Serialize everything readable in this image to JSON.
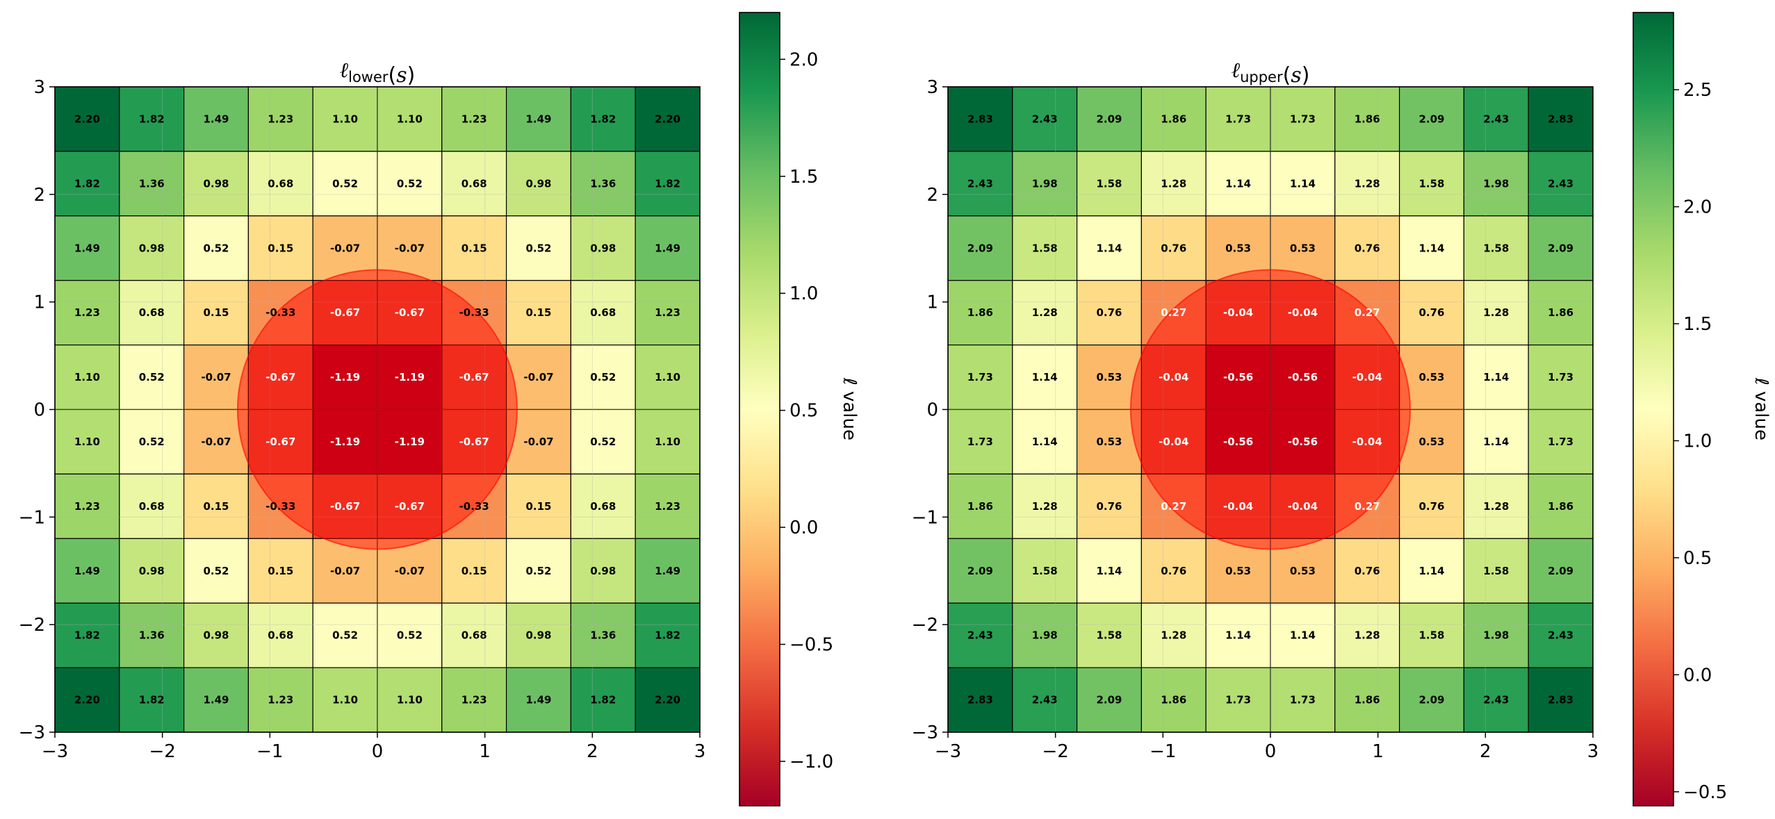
{
  "chart_data": [
    {
      "type": "heatmap",
      "title_symbol": "ℓ",
      "title_sub": "lower",
      "title_arg": "(s)",
      "x": [
        -2.7,
        -2.1,
        -1.5,
        -0.9,
        -0.3,
        0.3,
        0.9,
        1.5,
        2.1,
        2.7
      ],
      "y": [
        2.7,
        2.1,
        1.5,
        0.9,
        0.3,
        -0.3,
        -0.9,
        -1.5,
        -2.1,
        -2.7
      ],
      "xlim": [
        -3,
        3
      ],
      "ylim": [
        -3,
        3
      ],
      "xticks": [
        "−3",
        "−2",
        "−1",
        "0",
        "1",
        "2",
        "3"
      ],
      "yticks": [
        "3",
        "2",
        "1",
        "0",
        "−1",
        "−2",
        "−3"
      ],
      "grid": true,
      "colormap": "RdYlGn",
      "vmin": -1.19,
      "vmax": 2.2,
      "values": [
        [
          "2.20",
          "1.82",
          "1.49",
          "1.23",
          "1.10",
          "1.10",
          "1.23",
          "1.49",
          "1.82",
          "2.20"
        ],
        [
          "1.82",
          "1.36",
          "0.98",
          "0.68",
          "0.52",
          "0.52",
          "0.68",
          "0.98",
          "1.36",
          "1.82"
        ],
        [
          "1.49",
          "0.98",
          "0.52",
          "0.15",
          "-0.07",
          "-0.07",
          "0.15",
          "0.52",
          "0.98",
          "1.49"
        ],
        [
          "1.23",
          "0.68",
          "0.15",
          "-0.33",
          "-0.67",
          "-0.67",
          "-0.33",
          "0.15",
          "0.68",
          "1.23"
        ],
        [
          "1.10",
          "0.52",
          "-0.07",
          "-0.67",
          "-1.19",
          "-1.19",
          "-0.67",
          "-0.07",
          "0.52",
          "1.10"
        ],
        [
          "1.10",
          "0.52",
          "-0.07",
          "-0.67",
          "-1.19",
          "-1.19",
          "-0.67",
          "-0.07",
          "0.52",
          "1.10"
        ],
        [
          "1.23",
          "0.68",
          "0.15",
          "-0.33",
          "-0.67",
          "-0.67",
          "-0.33",
          "0.15",
          "0.68",
          "1.23"
        ],
        [
          "1.49",
          "0.98",
          "0.52",
          "0.15",
          "-0.07",
          "-0.07",
          "0.15",
          "0.52",
          "0.98",
          "1.49"
        ],
        [
          "1.82",
          "1.36",
          "0.98",
          "0.68",
          "0.52",
          "0.52",
          "0.68",
          "0.98",
          "1.36",
          "1.82"
        ],
        [
          "2.20",
          "1.82",
          "1.49",
          "1.23",
          "1.10",
          "1.10",
          "1.23",
          "1.49",
          "1.82",
          "2.20"
        ]
      ],
      "obstacle": {
        "center": [
          0,
          0
        ],
        "radius": 1.3,
        "color": "#ff0000",
        "alpha": 0.45
      },
      "colorbar": {
        "label": "ℓ value",
        "ticks": [
          -1.0,
          -0.5,
          0.0,
          0.5,
          1.0,
          1.5,
          2.0
        ],
        "tick_labels": [
          "−1.0",
          "−0.5",
          "0.0",
          "0.5",
          "1.0",
          "1.5",
          "2.0"
        ]
      }
    },
    {
      "type": "heatmap",
      "title_symbol": "ℓ",
      "title_sub": "upper",
      "title_arg": "(s)",
      "x": [
        -2.7,
        -2.1,
        -1.5,
        -0.9,
        -0.3,
        0.3,
        0.9,
        1.5,
        2.1,
        2.7
      ],
      "y": [
        2.7,
        2.1,
        1.5,
        0.9,
        0.3,
        -0.3,
        -0.9,
        -1.5,
        -2.1,
        -2.7
      ],
      "xlim": [
        -3,
        3
      ],
      "ylim": [
        -3,
        3
      ],
      "xticks": [
        "−3",
        "−2",
        "−1",
        "0",
        "1",
        "2",
        "3"
      ],
      "yticks": [
        "3",
        "2",
        "1",
        "0",
        "−1",
        "−2",
        "−3"
      ],
      "grid": true,
      "colormap": "RdYlGn",
      "vmin": -0.56,
      "vmax": 2.83,
      "values": [
        [
          "2.83",
          "2.43",
          "2.09",
          "1.86",
          "1.73",
          "1.73",
          "1.86",
          "2.09",
          "2.43",
          "2.83"
        ],
        [
          "2.43",
          "1.98",
          "1.58",
          "1.28",
          "1.14",
          "1.14",
          "1.28",
          "1.58",
          "1.98",
          "2.43"
        ],
        [
          "2.09",
          "1.58",
          "1.14",
          "0.76",
          "0.53",
          "0.53",
          "0.76",
          "1.14",
          "1.58",
          "2.09"
        ],
        [
          "1.86",
          "1.28",
          "0.76",
          "0.27",
          "-0.04",
          "-0.04",
          "0.27",
          "0.76",
          "1.28",
          "1.86"
        ],
        [
          "1.73",
          "1.14",
          "0.53",
          "-0.04",
          "-0.56",
          "-0.56",
          "-0.04",
          "0.53",
          "1.14",
          "1.73"
        ],
        [
          "1.73",
          "1.14",
          "0.53",
          "-0.04",
          "-0.56",
          "-0.56",
          "-0.04",
          "0.53",
          "1.14",
          "1.73"
        ],
        [
          "1.86",
          "1.28",
          "0.76",
          "0.27",
          "-0.04",
          "-0.04",
          "0.27",
          "0.76",
          "1.28",
          "1.86"
        ],
        [
          "2.09",
          "1.58",
          "1.14",
          "0.76",
          "0.53",
          "0.53",
          "0.76",
          "1.14",
          "1.58",
          "2.09"
        ],
        [
          "2.43",
          "1.98",
          "1.58",
          "1.28",
          "1.14",
          "1.14",
          "1.28",
          "1.58",
          "1.98",
          "2.43"
        ],
        [
          "2.83",
          "2.43",
          "2.09",
          "1.86",
          "1.73",
          "1.73",
          "1.86",
          "2.09",
          "2.43",
          "2.83"
        ]
      ],
      "obstacle": {
        "center": [
          0,
          0
        ],
        "radius": 1.3,
        "color": "#ff0000",
        "alpha": 0.45
      },
      "colorbar": {
        "label": "ℓ value",
        "ticks": [
          -0.5,
          0.0,
          0.5,
          1.0,
          1.5,
          2.0,
          2.5
        ],
        "tick_labels": [
          "−0.5",
          "0.0",
          "0.5",
          "1.0",
          "1.5",
          "2.0",
          "2.5"
        ]
      }
    }
  ]
}
